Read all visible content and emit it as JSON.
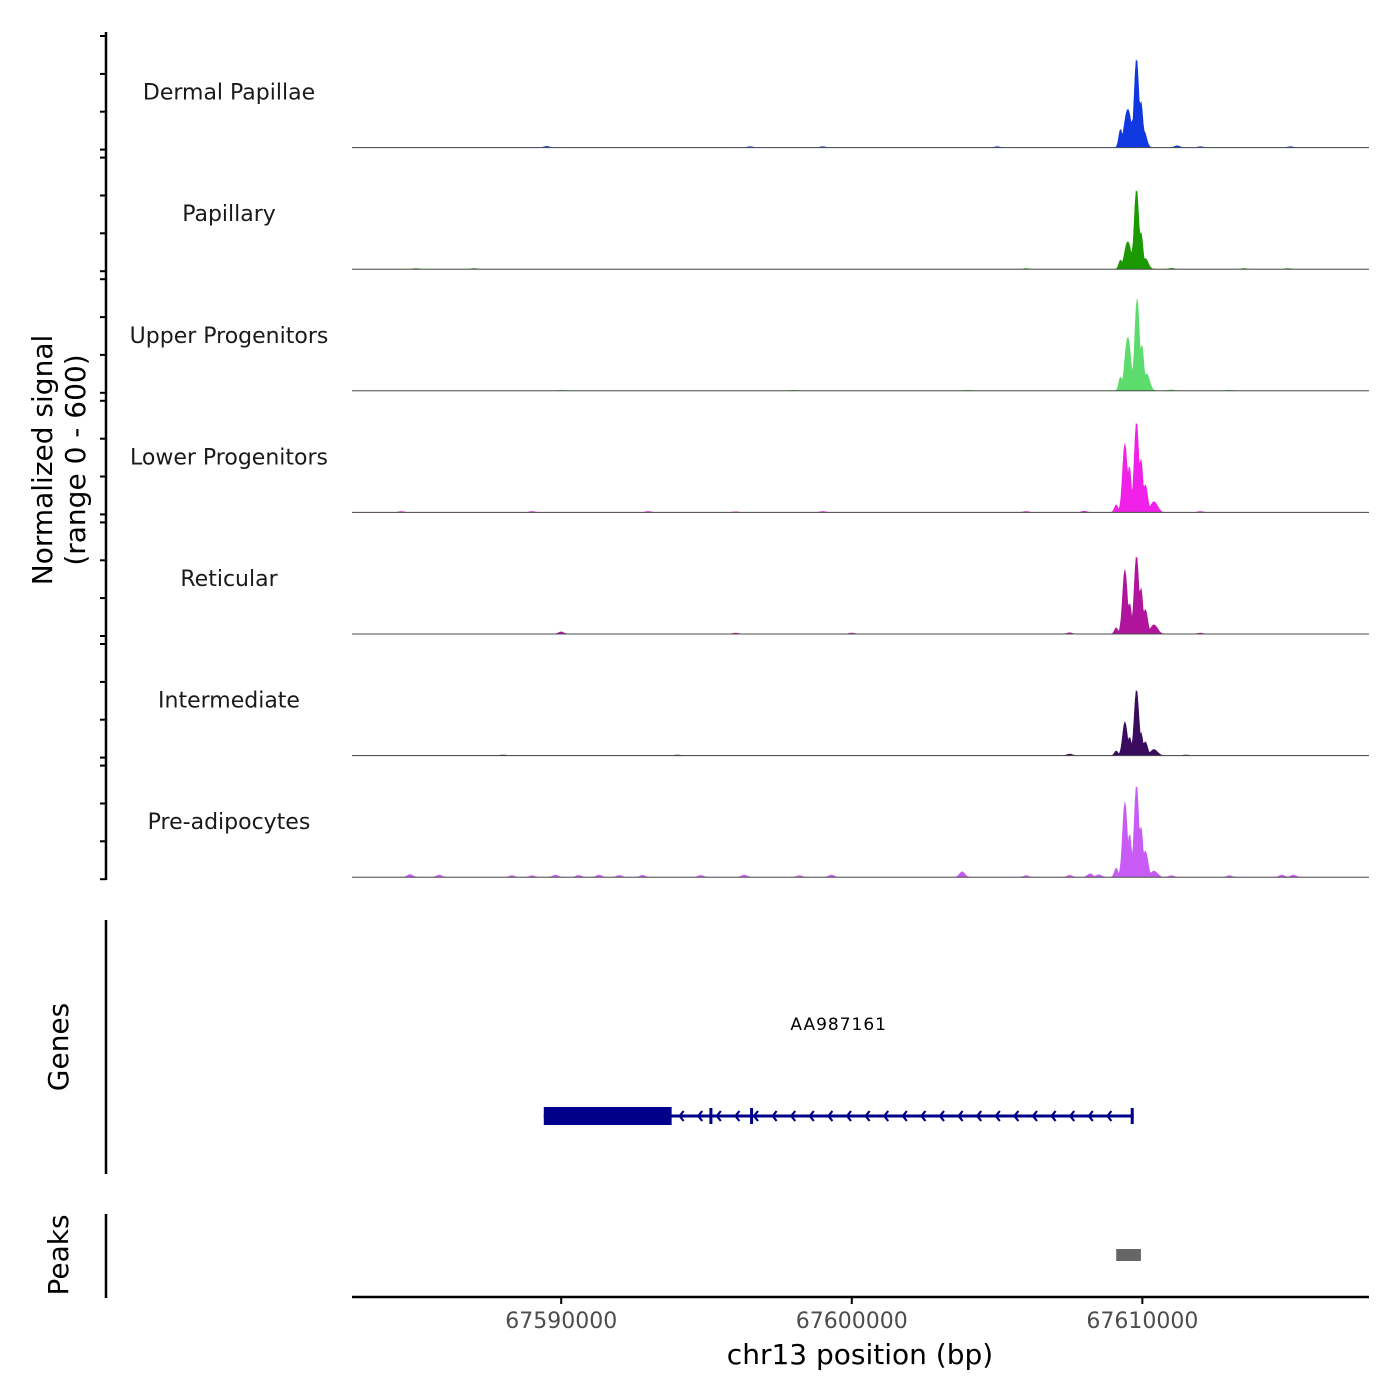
{
  "chart_data": {
    "type": "area",
    "title": "",
    "xlabel": "chr13 position (bp)",
    "ylabel": "Normalized signal",
    "ylabel_sub": "(range 0 - 600)",
    "y_range": [
      0,
      600
    ],
    "x_range": [
      67582800,
      67617800
    ],
    "x_ticks": [
      67590000,
      67600000,
      67610000
    ],
    "x_tick_labels": [
      "67590000",
      "67600000",
      "67610000"
    ],
    "series": [
      {
        "name": "Dermal Papillae",
        "color": "#1038E0",
        "peaks": [
          [
            67609250,
            60,
            120
          ],
          [
            67609500,
            120,
            250
          ],
          [
            67609680,
            100,
            180
          ],
          [
            67609800,
            80,
            580
          ],
          [
            67609950,
            70,
            300
          ],
          [
            67610050,
            90,
            110
          ]
        ],
        "noise": [
          [
            67589500,
            8
          ],
          [
            67596500,
            6
          ],
          [
            67599000,
            6
          ],
          [
            67605000,
            6
          ],
          [
            67611200,
            12
          ],
          [
            67612000,
            6
          ],
          [
            67615100,
            6
          ]
        ]
      },
      {
        "name": "Papillary",
        "color": "#1A9A00",
        "peaks": [
          [
            67609250,
            60,
            60
          ],
          [
            67609500,
            110,
            180
          ],
          [
            67609700,
            90,
            140
          ],
          [
            67609800,
            80,
            520
          ],
          [
            67609950,
            70,
            240
          ],
          [
            67610100,
            100,
            70
          ]
        ],
        "noise": [
          [
            67585000,
            4
          ],
          [
            67587000,
            4
          ],
          [
            67606000,
            4
          ],
          [
            67611000,
            6
          ],
          [
            67613500,
            4
          ],
          [
            67615000,
            4
          ]
        ]
      },
      {
        "name": "Upper Progenitors",
        "color": "#5CDC6C",
        "peaks": [
          [
            67609250,
            60,
            90
          ],
          [
            67609500,
            100,
            350
          ],
          [
            67609700,
            80,
            160
          ],
          [
            67609820,
            80,
            600
          ],
          [
            67609980,
            70,
            300
          ],
          [
            67610150,
            100,
            110
          ]
        ],
        "noise": [
          [
            67590000,
            4
          ],
          [
            67598000,
            4
          ],
          [
            67604000,
            4
          ],
          [
            67611000,
            6
          ],
          [
            67613000,
            4
          ]
        ]
      },
      {
        "name": "Lower Progenitors",
        "color": "#F020E8",
        "peaks": [
          [
            67609100,
            60,
            50
          ],
          [
            67609400,
            80,
            450
          ],
          [
            67609550,
            70,
            300
          ],
          [
            67609800,
            80,
            590
          ],
          [
            67609950,
            70,
            350
          ],
          [
            67610100,
            80,
            180
          ],
          [
            67610400,
            120,
            70
          ]
        ],
        "noise": [
          [
            67584500,
            6
          ],
          [
            67589000,
            6
          ],
          [
            67593000,
            6
          ],
          [
            67596000,
            4
          ],
          [
            67599000,
            6
          ],
          [
            67606000,
            6
          ],
          [
            67608000,
            8
          ],
          [
            67612000,
            6
          ]
        ]
      },
      {
        "name": "Reticular",
        "color": "#B0149C",
        "peaks": [
          [
            67609100,
            60,
            40
          ],
          [
            67609400,
            80,
            420
          ],
          [
            67609560,
            70,
            200
          ],
          [
            67609800,
            80,
            510
          ],
          [
            67609950,
            70,
            300
          ],
          [
            67610100,
            80,
            160
          ],
          [
            67610400,
            120,
            60
          ]
        ],
        "noise": [
          [
            67590000,
            14
          ],
          [
            67596000,
            6
          ],
          [
            67600000,
            6
          ],
          [
            67607500,
            8
          ],
          [
            67612000,
            6
          ]
        ]
      },
      {
        "name": "Intermediate",
        "color": "#3A0C5E",
        "peaks": [
          [
            67609100,
            60,
            30
          ],
          [
            67609400,
            80,
            220
          ],
          [
            67609560,
            70,
            120
          ],
          [
            67609800,
            80,
            430
          ],
          [
            67609950,
            70,
            150
          ],
          [
            67610100,
            80,
            90
          ],
          [
            67610400,
            120,
            40
          ]
        ],
        "noise": [
          [
            67588000,
            4
          ],
          [
            67594000,
            4
          ],
          [
            67607500,
            10
          ],
          [
            67611500,
            4
          ]
        ]
      },
      {
        "name": "Pre-adipocytes",
        "color": "#C85AF5",
        "peaks": [
          [
            67609100,
            60,
            60
          ],
          [
            67609400,
            80,
            490
          ],
          [
            67609560,
            70,
            280
          ],
          [
            67609800,
            80,
            600
          ],
          [
            67609950,
            70,
            330
          ],
          [
            67610100,
            90,
            170
          ],
          [
            67610400,
            120,
            40
          ]
        ],
        "noise": [
          [
            67584800,
            18
          ],
          [
            67585800,
            14
          ],
          [
            67588300,
            10
          ],
          [
            67589000,
            10
          ],
          [
            67589800,
            14
          ],
          [
            67590600,
            12
          ],
          [
            67591300,
            14
          ],
          [
            67592000,
            12
          ],
          [
            67592800,
            12
          ],
          [
            67594800,
            12
          ],
          [
            67596300,
            14
          ],
          [
            67598200,
            10
          ],
          [
            67599300,
            14
          ],
          [
            67603800,
            36
          ],
          [
            67606000,
            10
          ],
          [
            67607500,
            12
          ],
          [
            67608200,
            22
          ],
          [
            67608500,
            16
          ],
          [
            67611000,
            10
          ],
          [
            67613000,
            10
          ],
          [
            67614800,
            14
          ],
          [
            67615200,
            14
          ]
        ]
      }
    ],
    "genes_track": {
      "label": "Genes",
      "genes": [
        {
          "name": "AA987161",
          "strand": "-",
          "start": 67589400,
          "end": 67609700,
          "thick_start": 67589400,
          "thick_end": 67593800,
          "exons": [
            [
              67589400,
              67593800
            ],
            [
              67595100,
              67595200
            ],
            [
              67596500,
              67596600
            ],
            [
              67609600,
              67609700
            ]
          ],
          "color": "#00008B"
        }
      ]
    },
    "peaks_track": {
      "label": "Peaks",
      "peaks": [
        [
          67609100,
          67609950
        ]
      ],
      "color": "#666666"
    }
  }
}
